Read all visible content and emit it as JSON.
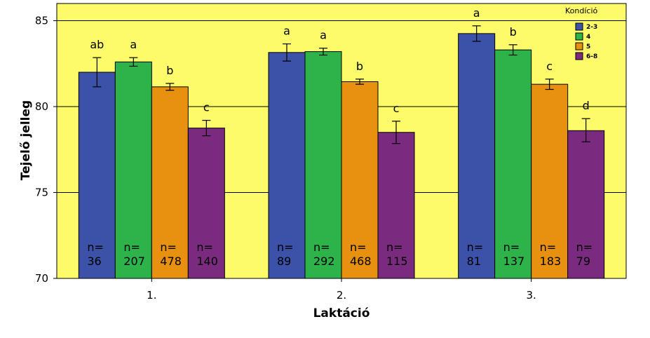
{
  "chart_data": {
    "type": "bar",
    "xlabel": "Laktáció",
    "ylabel": "Tejelő jelleg",
    "ylim": [
      70,
      86
    ],
    "yticks": [
      70,
      75,
      80,
      85
    ],
    "grid": true,
    "categories": [
      "1.",
      "2.",
      "3."
    ],
    "legend": {
      "title": "Kondíció",
      "position": "top-right"
    },
    "series": [
      {
        "name": "2-3",
        "color": "#3b52a8",
        "values": [
          82.0,
          83.15,
          84.25
        ],
        "err_low": [
          81.15,
          82.65,
          83.8
        ],
        "err_high": [
          82.85,
          83.65,
          84.7
        ],
        "sig": [
          "ab",
          "a",
          "a"
        ],
        "n_prefix": [
          "n=",
          "n=",
          "n="
        ],
        "n": [
          "36",
          "89",
          "81"
        ]
      },
      {
        "name": "4",
        "color": "#2db34a",
        "values": [
          82.6,
          83.2,
          83.3
        ],
        "err_low": [
          82.35,
          83.0,
          83.0
        ],
        "err_high": [
          82.85,
          83.4,
          83.6
        ],
        "sig": [
          "a",
          "a",
          "b"
        ],
        "n_prefix": [
          "n=",
          "n=",
          "n="
        ],
        "n": [
          "207",
          "292",
          "137"
        ]
      },
      {
        "name": "5",
        "color": "#e8900f",
        "values": [
          81.15,
          81.45,
          81.3
        ],
        "err_low": [
          80.95,
          81.3,
          81.0
        ],
        "err_high": [
          81.35,
          81.6,
          81.6
        ],
        "sig": [
          "b",
          "b",
          "c"
        ],
        "n_prefix": [
          "n=",
          "n=",
          "n="
        ],
        "n": [
          "478",
          "468",
          "183"
        ]
      },
      {
        "name": "6-8",
        "color": "#7a2a7f",
        "values": [
          78.75,
          78.5,
          78.6
        ],
        "err_low": [
          78.3,
          77.85,
          77.95
        ],
        "err_high": [
          79.2,
          79.15,
          79.3
        ],
        "sig": [
          "c",
          "c",
          "d"
        ],
        "n_prefix": [
          "n=",
          "n=",
          "n="
        ],
        "n": [
          "140",
          "115",
          "79"
        ]
      }
    ]
  }
}
